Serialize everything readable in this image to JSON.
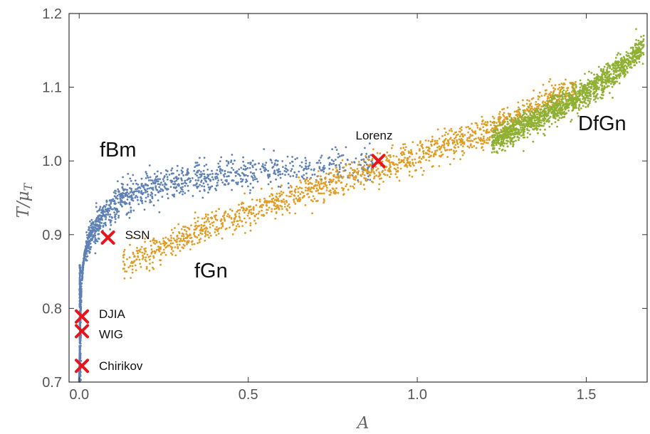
{
  "chart_data": {
    "type": "scatter",
    "xlabel": "A",
    "ylabel": "T/μT",
    "ylabel_main": "T/μ",
    "ylabel_sub": "T",
    "xlim": [
      -0.03,
      1.68
    ],
    "ylim": [
      0.7,
      1.2
    ],
    "x_ticks": [
      0.0,
      0.5,
      1.0,
      1.5
    ],
    "x_tick_labels": [
      "0.0",
      "0.5",
      "1.0",
      "1.5"
    ],
    "y_ticks": [
      0.7,
      0.8,
      0.9,
      1.0,
      1.1,
      1.2
    ],
    "y_tick_labels": [
      "0.7",
      "0.8",
      "0.9",
      "1.0",
      "1.1",
      "1.2"
    ],
    "grid": false,
    "series": [
      {
        "name": "fBm",
        "color": "#5e81b5",
        "curve": {
          "x": [
            0.0,
            0.003,
            0.008,
            0.015,
            0.025,
            0.04,
            0.06,
            0.09,
            0.13,
            0.2,
            0.3,
            0.4,
            0.5,
            0.6,
            0.7,
            0.8,
            0.87
          ],
          "y": [
            0.7,
            0.78,
            0.84,
            0.87,
            0.89,
            0.905,
            0.92,
            0.935,
            0.95,
            0.963,
            0.972,
            0.978,
            0.983,
            0.987,
            0.992,
            0.996,
            1.0
          ]
        },
        "spread": 0.011
      },
      {
        "name": "fGn",
        "color": "#e19c24",
        "curve": {
          "x": [
            0.13,
            0.2,
            0.3,
            0.4,
            0.5,
            0.6,
            0.7,
            0.8,
            0.9,
            1.0,
            1.1,
            1.2,
            1.3,
            1.4,
            1.47
          ],
          "y": [
            0.86,
            0.872,
            0.895,
            0.913,
            0.932,
            0.948,
            0.963,
            0.978,
            0.993,
            1.008,
            1.023,
            1.04,
            1.062,
            1.085,
            1.1
          ]
        },
        "spread": 0.01
      },
      {
        "name": "DfGn",
        "color": "#8fb032",
        "curve": {
          "x": [
            1.22,
            1.3,
            1.4,
            1.5,
            1.6,
            1.67
          ],
          "y": [
            1.025,
            1.045,
            1.068,
            1.093,
            1.125,
            1.155
          ]
        },
        "spread": 0.009
      }
    ],
    "markers": [
      {
        "label": "Lorenz",
        "x": 0.885,
        "y": 1.0
      },
      {
        "label": "SSN",
        "x": 0.085,
        "y": 0.896
      },
      {
        "label": "DJIA",
        "x": 0.008,
        "y": 0.789
      },
      {
        "label": "WIG",
        "x": 0.008,
        "y": 0.769
      },
      {
        "label": "Chirikov",
        "x": 0.008,
        "y": 0.722
      }
    ],
    "marker_color": "#e8141c"
  }
}
